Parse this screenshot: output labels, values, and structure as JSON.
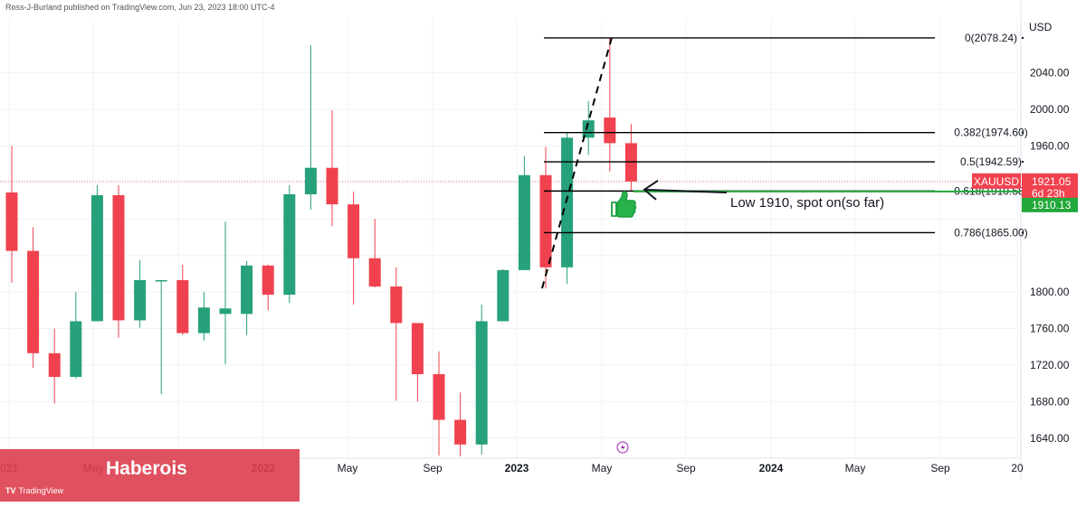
{
  "header": {
    "publisher_line": "Ross-J-Burland published on TradingView.com, Jun 23, 2023 18:00 UTC-4"
  },
  "banner": {
    "brand": "Haberois",
    "logo_text": "TradingView",
    "logo_mark": "TV"
  },
  "colors": {
    "up": "#26a17b",
    "down": "#f0424e",
    "fib_line": "#000000",
    "support_line": "#22a83a",
    "grid": "#f0f3f8",
    "price_badge": "#f0424e",
    "support_badge": "#22a83a"
  },
  "chart_data": {
    "type": "candlestick",
    "symbol": "XAUUSD",
    "currency_label": "USD",
    "ylim": [
      1618,
      2098
    ],
    "y_ticks": [
      1640,
      1680,
      1720,
      1760,
      1800,
      1840,
      1880,
      1920,
      1960,
      2000,
      2040
    ],
    "y_tick_labels": [
      "1640.00",
      "1680.00",
      "1720.00",
      "1760.00",
      "1800.00",
      "",
      "",
      "",
      "1960.00",
      "2000.00",
      "2040.00"
    ],
    "x_tick_labels": [
      "021",
      "May",
      "Sep",
      "2022",
      "May",
      "Sep",
      "2023",
      "May",
      "Sep",
      "2024",
      "May",
      "Sep",
      "20"
    ],
    "bold_x_tick_labels": [
      "2022",
      "2023",
      "2024"
    ],
    "candles": [
      {
        "o": 1909,
        "h": 1960,
        "l": 1810,
        "c": 1845
      },
      {
        "o": 1845,
        "h": 1871,
        "l": 1717,
        "c": 1733
      },
      {
        "o": 1733,
        "h": 1760,
        "l": 1678,
        "c": 1707
      },
      {
        "o": 1707,
        "h": 1800,
        "l": 1705,
        "c": 1768
      },
      {
        "o": 1768,
        "h": 1917,
        "l": 1768,
        "c": 1906
      },
      {
        "o": 1906,
        "h": 1917,
        "l": 1750,
        "c": 1769
      },
      {
        "o": 1769,
        "h": 1835,
        "l": 1761,
        "c": 1813
      },
      {
        "o": 1813,
        "h": 1813,
        "l": 1688,
        "c": 1813
      },
      {
        "o": 1813,
        "h": 1830,
        "l": 1753,
        "c": 1755
      },
      {
        "o": 1755,
        "h": 1800,
        "l": 1747,
        "c": 1783
      },
      {
        "o": 1776,
        "h": 1877,
        "l": 1721,
        "c": 1782
      },
      {
        "o": 1776,
        "h": 1834,
        "l": 1753,
        "c": 1829
      },
      {
        "o": 1829,
        "h": 1830,
        "l": 1780,
        "c": 1797
      },
      {
        "o": 1797,
        "h": 1917,
        "l": 1788,
        "c": 1907
      },
      {
        "o": 1907,
        "h": 2070,
        "l": 1890,
        "c": 1936
      },
      {
        "o": 1936,
        "h": 1999,
        "l": 1872,
        "c": 1896
      },
      {
        "o": 1896,
        "h": 1910,
        "l": 1786,
        "c": 1837
      },
      {
        "o": 1837,
        "h": 1880,
        "l": 1805,
        "c": 1806
      },
      {
        "o": 1806,
        "h": 1827,
        "l": 1681,
        "c": 1766
      },
      {
        "o": 1766,
        "h": 1766,
        "l": 1680,
        "c": 1710
      },
      {
        "o": 1710,
        "h": 1735,
        "l": 1621,
        "c": 1660
      },
      {
        "o": 1660,
        "h": 1690,
        "l": 1620,
        "c": 1633
      },
      {
        "o": 1633,
        "h": 1786,
        "l": 1622,
        "c": 1768
      },
      {
        "o": 1768,
        "h": 1825,
        "l": 1768,
        "c": 1824
      },
      {
        "o": 1824,
        "h": 1949,
        "l": 1824,
        "c": 1928
      },
      {
        "o": 1928,
        "h": 1959,
        "l": 1804,
        "c": 1827
      },
      {
        "o": 1827,
        "h": 1975,
        "l": 1809,
        "c": 1969
      },
      {
        "o": 1969,
        "h": 2009,
        "l": 1950,
        "c": 1988
      },
      {
        "o": 1991,
        "h": 2078,
        "l": 1932,
        "c": 1963
      },
      {
        "o": 1963,
        "h": 1984,
        "l": 1910,
        "c": 1921
      }
    ],
    "current_price": "1921.05",
    "countdown": "6d 23h",
    "support_price": "1910.13",
    "fib_levels": [
      {
        "label": "0(2078.24)",
        "value": 2078.24
      },
      {
        "label": "0.382(1974.60)",
        "value": 1974.6
      },
      {
        "label": "0.5(1942.59)",
        "value": 1942.59
      },
      {
        "label": "0.618(1910.58)",
        "value": 1910.58
      },
      {
        "label": "0.786(1865.00)",
        "value": 1865.0
      }
    ],
    "annotation": "Low 1910, spot on(so far)",
    "dashed_trend": {
      "from_candle": 25,
      "from_price": 1804,
      "to_candle": 28,
      "to_price": 2078
    }
  }
}
